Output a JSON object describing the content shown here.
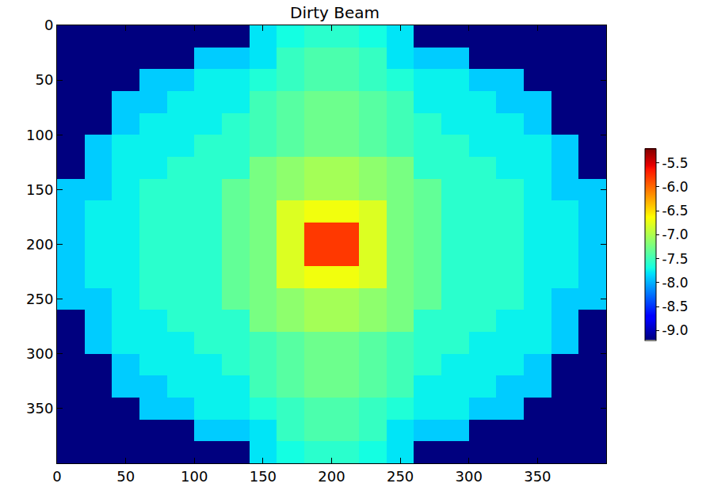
{
  "chart_data": {
    "type": "heatmap",
    "title": "Dirty Beam",
    "x": [
      10,
      30,
      50,
      70,
      90,
      110,
      130,
      150,
      170,
      190,
      210,
      230,
      250,
      270,
      290,
      310,
      330,
      350,
      370,
      390
    ],
    "y": [
      10,
      30,
      50,
      70,
      90,
      110,
      130,
      150,
      170,
      190,
      210,
      230,
      250,
      270,
      290,
      310,
      330,
      350,
      370,
      390
    ],
    "z": [
      [
        -9.2,
        -9.2,
        -9.2,
        -9.2,
        -9.2,
        -9.2,
        -9.2,
        -7.8,
        -7.7,
        -7.6,
        -7.6,
        -7.7,
        -7.8,
        -9.2,
        -9.2,
        -9.2,
        -9.2,
        -9.2,
        -9.2,
        -9.2
      ],
      [
        -9.2,
        -9.2,
        -9.2,
        -9.2,
        -9.2,
        -7.9,
        -7.9,
        -7.8,
        -7.55,
        -7.45,
        -7.45,
        -7.55,
        -7.8,
        -7.9,
        -7.9,
        -9.2,
        -9.2,
        -9.2,
        -9.2,
        -9.2
      ],
      [
        -9.2,
        -9.2,
        -9.2,
        -7.9,
        -7.9,
        -7.75,
        -7.75,
        -7.65,
        -7.55,
        -7.45,
        -7.45,
        -7.55,
        -7.65,
        -7.75,
        -7.75,
        -7.9,
        -7.9,
        -9.2,
        -9.2,
        -9.2
      ],
      [
        -9.2,
        -9.2,
        -7.9,
        -7.9,
        -7.75,
        -7.75,
        -7.75,
        -7.5,
        -7.4,
        -7.3,
        -7.3,
        -7.4,
        -7.5,
        -7.75,
        -7.75,
        -7.75,
        -7.9,
        -7.9,
        -9.2,
        -9.2
      ],
      [
        -9.2,
        -9.2,
        -7.9,
        -7.75,
        -7.75,
        -7.75,
        -7.6,
        -7.5,
        -7.4,
        -7.3,
        -7.3,
        -7.4,
        -7.5,
        -7.6,
        -7.75,
        -7.75,
        -7.75,
        -7.9,
        -9.2,
        -9.2
      ],
      [
        -9.2,
        -7.9,
        -7.75,
        -7.75,
        -7.75,
        -7.6,
        -7.6,
        -7.5,
        -7.4,
        -7.3,
        -7.3,
        -7.4,
        -7.5,
        -7.6,
        -7.6,
        -7.75,
        -7.75,
        -7.75,
        -7.9,
        -9.2
      ],
      [
        -9.2,
        -7.9,
        -7.75,
        -7.75,
        -7.6,
        -7.6,
        -7.6,
        -7.25,
        -7.15,
        -7.05,
        -7.05,
        -7.15,
        -7.25,
        -7.6,
        -7.6,
        -7.6,
        -7.75,
        -7.75,
        -7.9,
        -9.2
      ],
      [
        -7.9,
        -7.9,
        -7.75,
        -7.6,
        -7.6,
        -7.6,
        -7.35,
        -7.25,
        -7.15,
        -7.05,
        -7.05,
        -7.15,
        -7.25,
        -7.35,
        -7.6,
        -7.6,
        -7.6,
        -7.75,
        -7.9,
        -7.9
      ],
      [
        -7.9,
        -7.75,
        -7.75,
        -7.6,
        -7.6,
        -7.6,
        -7.35,
        -7.25,
        -6.8,
        -6.7,
        -6.7,
        -6.8,
        -7.25,
        -7.35,
        -7.6,
        -7.6,
        -7.6,
        -7.75,
        -7.75,
        -7.9
      ],
      [
        -7.9,
        -7.75,
        -7.75,
        -7.6,
        -7.6,
        -7.6,
        -7.35,
        -7.25,
        -6.8,
        -5.8,
        -5.8,
        -6.8,
        -7.25,
        -7.35,
        -7.6,
        -7.6,
        -7.6,
        -7.75,
        -7.75,
        -7.9
      ],
      [
        -7.9,
        -7.75,
        -7.75,
        -7.6,
        -7.6,
        -7.6,
        -7.35,
        -7.25,
        -6.8,
        -5.8,
        -5.8,
        -6.8,
        -7.25,
        -7.35,
        -7.6,
        -7.6,
        -7.6,
        -7.75,
        -7.75,
        -7.9
      ],
      [
        -7.9,
        -7.75,
        -7.75,
        -7.6,
        -7.6,
        -7.6,
        -7.35,
        -7.25,
        -6.8,
        -6.7,
        -6.7,
        -6.8,
        -7.25,
        -7.35,
        -7.6,
        -7.6,
        -7.6,
        -7.75,
        -7.75,
        -7.9
      ],
      [
        -7.9,
        -7.9,
        -7.75,
        -7.6,
        -7.6,
        -7.6,
        -7.35,
        -7.25,
        -7.15,
        -7.05,
        -7.05,
        -7.15,
        -7.25,
        -7.35,
        -7.6,
        -7.6,
        -7.6,
        -7.75,
        -7.9,
        -7.9
      ],
      [
        -9.2,
        -7.9,
        -7.75,
        -7.75,
        -7.6,
        -7.6,
        -7.6,
        -7.25,
        -7.15,
        -7.05,
        -7.05,
        -7.15,
        -7.25,
        -7.6,
        -7.6,
        -7.6,
        -7.75,
        -7.75,
        -7.9,
        -9.2
      ],
      [
        -9.2,
        -7.9,
        -7.75,
        -7.75,
        -7.75,
        -7.6,
        -7.6,
        -7.5,
        -7.4,
        -7.3,
        -7.3,
        -7.4,
        -7.5,
        -7.6,
        -7.6,
        -7.75,
        -7.75,
        -7.75,
        -7.9,
        -9.2
      ],
      [
        -9.2,
        -9.2,
        -7.9,
        -7.75,
        -7.75,
        -7.75,
        -7.6,
        -7.5,
        -7.4,
        -7.3,
        -7.3,
        -7.4,
        -7.5,
        -7.6,
        -7.75,
        -7.75,
        -7.75,
        -7.9,
        -9.2,
        -9.2
      ],
      [
        -9.2,
        -9.2,
        -7.9,
        -7.9,
        -7.75,
        -7.75,
        -7.75,
        -7.5,
        -7.4,
        -7.3,
        -7.3,
        -7.4,
        -7.5,
        -7.75,
        -7.75,
        -7.75,
        -7.9,
        -7.9,
        -9.2,
        -9.2
      ],
      [
        -9.2,
        -9.2,
        -9.2,
        -7.9,
        -7.9,
        -7.75,
        -7.75,
        -7.65,
        -7.55,
        -7.45,
        -7.45,
        -7.55,
        -7.65,
        -7.75,
        -7.75,
        -7.9,
        -7.9,
        -9.2,
        -9.2,
        -9.2
      ],
      [
        -9.2,
        -9.2,
        -9.2,
        -9.2,
        -9.2,
        -7.9,
        -7.9,
        -7.8,
        -7.55,
        -7.45,
        -7.45,
        -7.55,
        -7.8,
        -7.9,
        -7.9,
        -9.2,
        -9.2,
        -9.2,
        -9.2,
        -9.2
      ],
      [
        -9.2,
        -9.2,
        -9.2,
        -9.2,
        -9.2,
        -9.2,
        -9.2,
        -7.8,
        -7.7,
        -7.6,
        -7.6,
        -7.7,
        -7.8,
        -9.2,
        -9.2,
        -9.2,
        -9.2,
        -9.2,
        -9.2,
        -9.2
      ]
    ],
    "xlim": [
      0,
      400
    ],
    "ylim": [
      400,
      0
    ],
    "xticks": [
      0,
      50,
      100,
      150,
      200,
      250,
      300,
      350
    ],
    "yticks": [
      0,
      50,
      100,
      150,
      200,
      250,
      300,
      350
    ],
    "zlim": [
      -9.2,
      -5.2
    ],
    "zticks": [
      -5.5,
      {
        "value": -6,
        "label": "-6.0"
      },
      -6.5,
      {
        "value": -7,
        "label": "-7.0"
      },
      -7.5,
      {
        "value": -8,
        "label": "-8.0"
      },
      -8.5,
      {
        "value": -9,
        "label": "-9.0"
      }
    ]
  }
}
